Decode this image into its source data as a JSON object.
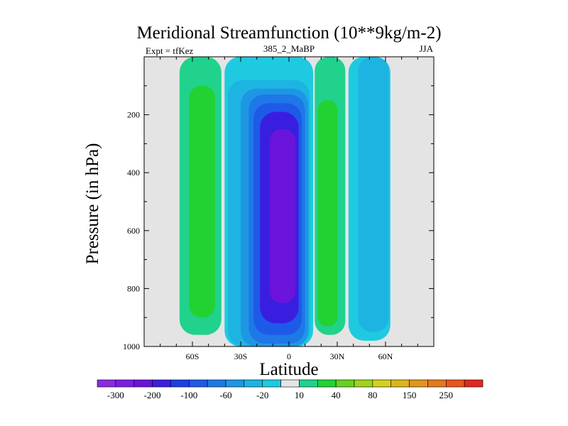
{
  "chart_data": {
    "type": "heatmap",
    "title": "Meridional Streamfunction (10**9kg/m-2)",
    "subtitle_left": "Expt = tfKez",
    "subtitle_center": "385_2_MaBP",
    "subtitle_right": "JJA",
    "xlabel": "Latitude",
    "ylabel": "Pressure (in hPa)",
    "xlim": [
      -90,
      90
    ],
    "ylim": [
      1000,
      0
    ],
    "xticks": [
      {
        "value": -60,
        "label": "60S"
      },
      {
        "value": -30,
        "label": "30S"
      },
      {
        "value": 0,
        "label": "0"
      },
      {
        "value": 30,
        "label": "30N"
      },
      {
        "value": 60,
        "label": "60N"
      }
    ],
    "yticks": [
      {
        "value": 200,
        "label": "200"
      },
      {
        "value": 400,
        "label": "400"
      },
      {
        "value": 600,
        "label": "600"
      },
      {
        "value": 800,
        "label": "800"
      },
      {
        "value": 1000,
        "label": "1000"
      }
    ],
    "contour_levels": [
      -350,
      -300,
      -250,
      -200,
      -150,
      -100,
      -80,
      -60,
      -40,
      -20,
      -10,
      10,
      20,
      40,
      60,
      80,
      100,
      150,
      200,
      250,
      300
    ],
    "colorbar_labels": [
      "-300",
      "-200",
      "-100",
      "-60",
      "-20",
      "10",
      "40",
      "80",
      "150",
      "250"
    ],
    "colorbar_colors": [
      "#8a2be2",
      "#7a1fe0",
      "#6a14dc",
      "#3a1ee0",
      "#1e3ee6",
      "#1e5ae8",
      "#1e78e6",
      "#1e96e4",
      "#1eb4e2",
      "#1ecae0",
      "#e4e4e4",
      "#20d28c",
      "#22d232",
      "#64d21e",
      "#a0d21e",
      "#d2d21e",
      "#dcb41e",
      "#e0961e",
      "#e4781e",
      "#e8561e",
      "#e0281e"
    ],
    "background_color": "#e4e4e4",
    "regions": [
      {
        "level": 10,
        "color": "#20d28c",
        "lat_min": -68,
        "lat_max": -42,
        "p_top": 0,
        "p_bottom": 960,
        "note": "SH positive cell (outer)"
      },
      {
        "level": 20,
        "color": "#22d232",
        "lat_min": -62,
        "lat_max": -46,
        "p_top": 100,
        "p_bottom": 900,
        "note": "SH positive cell (inner)"
      },
      {
        "level": -10,
        "color": "#1ecae0",
        "lat_min": -40,
        "lat_max": 15,
        "p_top": 0,
        "p_bottom": 1000,
        "note": "tropical negative cell"
      },
      {
        "level": -20,
        "color": "#1eb4e2",
        "lat_min": -38,
        "lat_max": 13,
        "p_top": 80,
        "p_bottom": 1000
      },
      {
        "level": -40,
        "color": "#1e96e4",
        "lat_min": -30,
        "lat_max": 12,
        "p_top": 110,
        "p_bottom": 1000
      },
      {
        "level": -60,
        "color": "#1e78e6",
        "lat_min": -25,
        "lat_max": 10,
        "p_top": 130,
        "p_bottom": 990
      },
      {
        "level": -80,
        "color": "#1e5ae8",
        "lat_min": -22,
        "lat_max": 8,
        "p_top": 160,
        "p_bottom": 960
      },
      {
        "level": -100,
        "color": "#3a1ee0",
        "lat_min": -18,
        "lat_max": 6,
        "p_top": 190,
        "p_bottom": 920
      },
      {
        "level": -150,
        "color": "#6a14dc",
        "lat_min": -12,
        "lat_max": 4,
        "p_top": 250,
        "p_bottom": 850
      },
      {
        "level": 10,
        "color": "#20d28c",
        "lat_min": 16,
        "lat_max": 35,
        "p_top": 0,
        "p_bottom": 960,
        "note": "NH positive cell"
      },
      {
        "level": 20,
        "color": "#22d232",
        "lat_min": 18,
        "lat_max": 30,
        "p_top": 150,
        "p_bottom": 930
      },
      {
        "level": -10,
        "color": "#1ecae0",
        "lat_min": 37,
        "lat_max": 63,
        "p_top": 0,
        "p_bottom": 980,
        "note": "NH negative cell"
      },
      {
        "level": -20,
        "color": "#1eb4e2",
        "lat_min": 43,
        "lat_max": 62,
        "p_top": 0,
        "p_bottom": 950
      }
    ]
  }
}
